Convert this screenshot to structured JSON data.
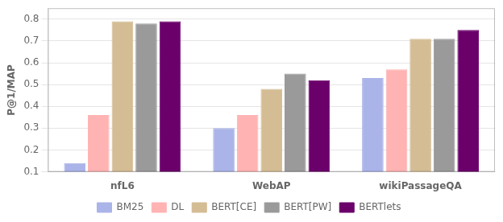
{
  "chart_data": {
    "type": "bar",
    "categories": [
      "nfL6",
      "WebAP",
      "wikiPassageQA"
    ],
    "series": [
      {
        "name": "BM25",
        "color": "#aab4e8",
        "values": [
          0.14,
          0.3,
          0.53
        ]
      },
      {
        "name": "DL",
        "color": "#ffb3b3",
        "values": [
          0.36,
          0.36,
          0.57
        ]
      },
      {
        "name": "BERT[CE]",
        "color": "#d4bc94",
        "values": [
          0.79,
          0.48,
          0.71
        ]
      },
      {
        "name": "BERT[PW]",
        "color": "#9a9a9a",
        "values": [
          0.78,
          0.55,
          0.71
        ]
      },
      {
        "name": "BERTlets",
        "color": "#6b006b",
        "values": [
          0.79,
          0.52,
          0.75
        ]
      }
    ],
    "ylabel": "P@1/MAP",
    "ylim": [
      0.1,
      0.85
    ],
    "yticks": [
      0.1,
      0.2,
      0.3,
      0.4,
      0.5,
      0.6,
      0.7,
      0.8
    ],
    "grid": true,
    "legend": "bottom"
  }
}
